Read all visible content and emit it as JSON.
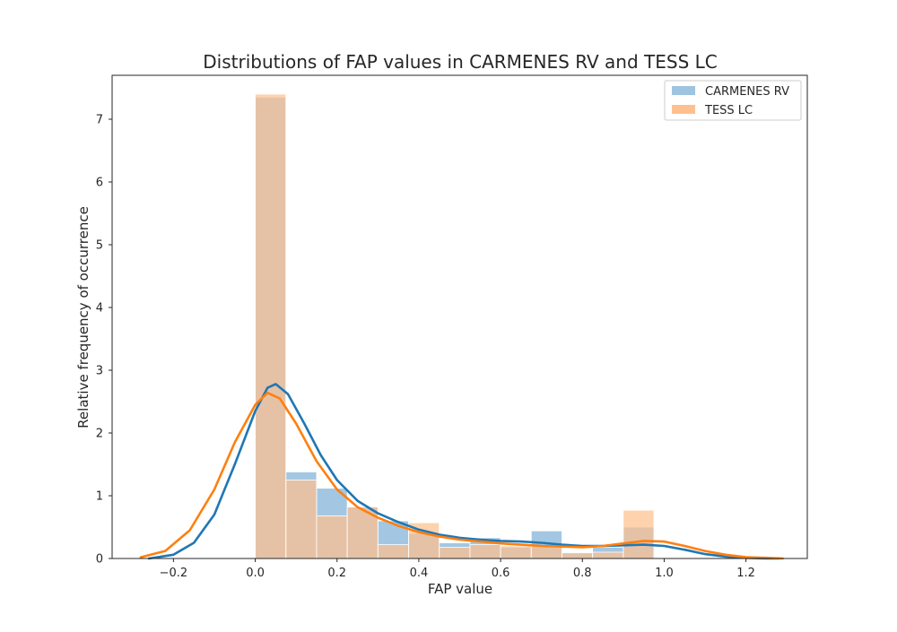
{
  "chart_data": {
    "type": "bar",
    "title": "Distributions of FAP values in CARMENES RV and TESS LC",
    "xlabel": "FAP value",
    "ylabel": "Relative frequency of occurrence",
    "xlim": [
      -0.35,
      1.35
    ],
    "ylim": [
      0,
      7.7
    ],
    "xticks": [
      -0.2,
      0.0,
      0.2,
      0.4,
      0.6,
      0.8,
      1.0,
      1.2
    ],
    "xtick_labels": [
      "−0.2",
      "0.0",
      "0.2",
      "0.4",
      "0.6",
      "0.8",
      "1.0",
      "1.2"
    ],
    "yticks": [
      0,
      1,
      2,
      3,
      4,
      5,
      6,
      7
    ],
    "ytick_labels": [
      "0",
      "1",
      "2",
      "3",
      "4",
      "5",
      "6",
      "7"
    ],
    "grid": false,
    "legend_position": "top-right",
    "bin_edges": [
      0.0,
      0.0769,
      0.1538,
      0.2308,
      0.3077,
      0.3846,
      0.4615,
      0.5385,
      0.6154,
      0.6923,
      0.7692,
      0.8462,
      0.9231,
      1.0
    ],
    "series": [
      {
        "name": "CARMENES RV",
        "kind": "histogram+kde",
        "color": "#1f77b4",
        "hist_color": "#9ec4e0",
        "bin_starts": [
          0.0,
          0.075,
          0.15,
          0.225,
          0.3,
          0.375,
          0.45,
          0.525,
          0.6,
          0.675,
          0.75,
          0.825,
          0.9
        ],
        "bin_ends": [
          0.075,
          0.15,
          0.225,
          0.3,
          0.375,
          0.45,
          0.525,
          0.6,
          0.675,
          0.75,
          0.825,
          0.9,
          0.975
        ],
        "values": [
          7.35,
          1.38,
          1.12,
          0.82,
          0.6,
          0.4,
          0.25,
          0.33,
          0.18,
          0.44,
          0.1,
          0.18,
          0.5
        ],
        "kde": {
          "x": [
            -0.26,
            -0.2,
            -0.15,
            -0.1,
            -0.05,
            0.0,
            0.03,
            0.05,
            0.08,
            0.12,
            0.16,
            0.2,
            0.25,
            0.3,
            0.35,
            0.4,
            0.45,
            0.5,
            0.55,
            0.6,
            0.65,
            0.7,
            0.75,
            0.8,
            0.85,
            0.9,
            0.95,
            1.0,
            1.05,
            1.1,
            1.15,
            1.2,
            1.25,
            1.28
          ],
          "y": [
            0.0,
            0.06,
            0.25,
            0.7,
            1.5,
            2.35,
            2.72,
            2.78,
            2.62,
            2.15,
            1.65,
            1.25,
            0.92,
            0.72,
            0.58,
            0.46,
            0.38,
            0.33,
            0.3,
            0.28,
            0.27,
            0.25,
            0.22,
            0.2,
            0.2,
            0.21,
            0.22,
            0.2,
            0.14,
            0.07,
            0.03,
            0.01,
            0.0,
            0.0
          ]
        }
      },
      {
        "name": "TESS LC",
        "kind": "histogram+kde",
        "color": "#ff7f0e",
        "hist_color": "#ffc08f",
        "bin_starts": [
          0.0,
          0.075,
          0.15,
          0.225,
          0.3,
          0.375,
          0.45,
          0.525,
          0.6,
          0.675,
          0.75,
          0.825,
          0.9
        ],
        "bin_ends": [
          0.075,
          0.15,
          0.225,
          0.3,
          0.375,
          0.45,
          0.525,
          0.6,
          0.675,
          0.75,
          0.825,
          0.9,
          0.975
        ],
        "values": [
          7.4,
          1.25,
          0.68,
          0.82,
          0.22,
          0.57,
          0.18,
          0.22,
          0.2,
          0.2,
          0.09,
          0.1,
          0.77
        ],
        "kde": {
          "x": [
            -0.28,
            -0.22,
            -0.16,
            -0.1,
            -0.05,
            0.0,
            0.03,
            0.06,
            0.1,
            0.15,
            0.2,
            0.25,
            0.3,
            0.35,
            0.4,
            0.45,
            0.5,
            0.55,
            0.6,
            0.65,
            0.7,
            0.75,
            0.8,
            0.85,
            0.9,
            0.95,
            1.0,
            1.05,
            1.1,
            1.15,
            1.2,
            1.25,
            1.29
          ],
          "y": [
            0.02,
            0.12,
            0.45,
            1.1,
            1.85,
            2.45,
            2.64,
            2.55,
            2.15,
            1.55,
            1.1,
            0.82,
            0.65,
            0.52,
            0.42,
            0.35,
            0.3,
            0.27,
            0.24,
            0.22,
            0.2,
            0.19,
            0.18,
            0.2,
            0.24,
            0.28,
            0.27,
            0.2,
            0.12,
            0.06,
            0.02,
            0.01,
            0.0
          ]
        }
      }
    ]
  }
}
